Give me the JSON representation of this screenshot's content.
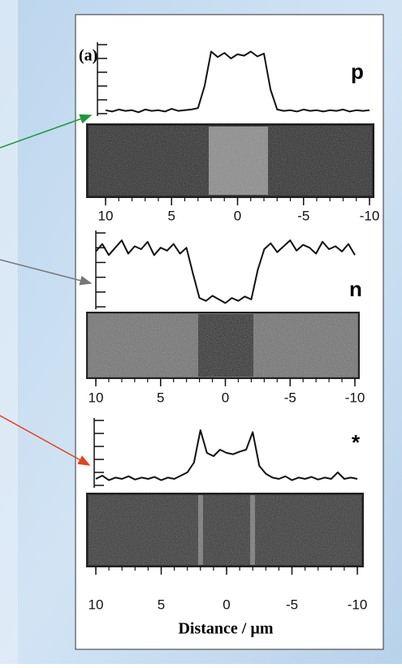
{
  "chart_data": [
    {
      "type": "line",
      "panel_label": "(a)",
      "label": "p",
      "x": [
        10,
        9.5,
        9,
        8.5,
        8,
        7.5,
        7,
        6.5,
        6,
        5.5,
        5,
        4.5,
        4,
        3.5,
        3,
        2.5,
        2,
        1.5,
        1,
        0.5,
        0,
        -0.5,
        -1,
        -1.5,
        -2,
        -2.5,
        -3,
        -3.5,
        -4,
        -4.5,
        -5,
        -5.5,
        -6,
        -6.5,
        -7,
        -7.5,
        -8,
        -8.5,
        -9,
        -9.5,
        -10
      ],
      "series": [
        {
          "color": "#111111",
          "values": [
            0.05,
            0.03,
            0.06,
            0.04,
            0.05,
            0.02,
            0.06,
            0.04,
            0.05,
            0.03,
            0.07,
            0.04,
            0.05,
            0.06,
            0.08,
            0.4,
            0.9,
            0.82,
            0.88,
            0.8,
            0.86,
            0.84,
            0.9,
            0.83,
            0.87,
            0.35,
            0.06,
            0.04,
            0.05,
            0.03,
            0.06,
            0.04,
            0.05,
            0.03,
            0.05,
            0.04,
            0.06,
            0.03,
            0.05,
            0.04,
            0.05
          ]
        }
      ],
      "xlim": [
        10,
        -10
      ],
      "xticks": [
        10,
        5,
        0,
        -5,
        -10
      ],
      "ylim": [
        0,
        1
      ],
      "yticks": [
        0,
        0.2,
        0.4,
        0.6,
        0.8,
        1
      ]
    },
    {
      "type": "line",
      "label": "n",
      "x": [
        10,
        9.5,
        9,
        8.5,
        8,
        7.5,
        7,
        6.5,
        6,
        5.5,
        5,
        4.5,
        4,
        3.5,
        3,
        2.5,
        2,
        1.5,
        1,
        0.5,
        0,
        -0.5,
        -1,
        -1.5,
        -2,
        -2.5,
        -3,
        -3.5,
        -4,
        -4.5,
        -5,
        -5.5,
        -6,
        -6.5,
        -7,
        -7.5,
        -8,
        -8.5,
        -9,
        -9.5,
        -10
      ],
      "series": [
        {
          "color": "#111111",
          "values": [
            0.75,
            0.85,
            0.7,
            0.8,
            0.9,
            0.72,
            0.82,
            0.78,
            0.88,
            0.7,
            0.8,
            0.76,
            0.85,
            0.72,
            0.8,
            0.45,
            0.12,
            0.08,
            0.15,
            0.1,
            0.05,
            0.12,
            0.08,
            0.14,
            0.1,
            0.5,
            0.78,
            0.86,
            0.74,
            0.82,
            0.9,
            0.76,
            0.84,
            0.8,
            0.72,
            0.88,
            0.78,
            0.82,
            0.75,
            0.85,
            0.7
          ]
        }
      ],
      "xlim": [
        10,
        -10
      ],
      "xticks": [
        10,
        5,
        0,
        -5,
        -10
      ],
      "ylim": [
        0,
        1
      ],
      "yticks": [
        0,
        0.2,
        0.4,
        0.6,
        0.8,
        1
      ]
    },
    {
      "type": "line",
      "label": "*",
      "xlabel": "Distance / µm",
      "x": [
        10,
        9.5,
        9,
        8.5,
        8,
        7.5,
        7,
        6.5,
        6,
        5.5,
        5,
        4.5,
        4,
        3.5,
        3,
        2.5,
        2,
        1.5,
        1,
        0.5,
        0,
        -0.5,
        -1,
        -1.5,
        -2,
        -2.5,
        -3,
        -3.5,
        -4,
        -4.5,
        -5,
        -5.5,
        -6,
        -6.5,
        -7,
        -7.5,
        -8,
        -8.5,
        -9,
        -9.5,
        -10
      ],
      "series": [
        {
          "color": "#111111",
          "values": [
            0.1,
            0.15,
            0.08,
            0.12,
            0.1,
            0.14,
            0.09,
            0.12,
            0.1,
            0.13,
            0.08,
            0.12,
            0.1,
            0.15,
            0.2,
            0.35,
            0.85,
            0.5,
            0.45,
            0.55,
            0.5,
            0.48,
            0.52,
            0.55,
            0.82,
            0.3,
            0.18,
            0.12,
            0.1,
            0.14,
            0.08,
            0.12,
            0.1,
            0.13,
            0.09,
            0.12,
            0.1,
            0.2,
            0.1,
            0.12,
            0.1
          ]
        }
      ],
      "xlim": [
        10,
        -10
      ],
      "xticks": [
        10,
        5,
        0,
        -5,
        -10
      ],
      "ylim": [
        0,
        1
      ],
      "yticks": [
        0,
        0.2,
        0.4,
        0.6,
        0.8,
        1
      ]
    }
  ]
}
